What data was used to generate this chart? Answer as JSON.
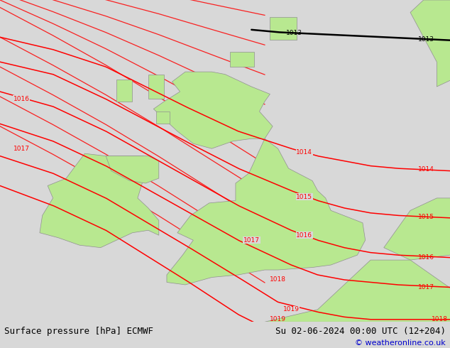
{
  "title_bottom_left": "Surface pressure [hPa] ECMWF",
  "title_bottom_right": "Su 02-06-2024 00:00 UTC (12+204)",
  "copyright": "© weatheronline.co.uk",
  "bg_color": "#d8d8d8",
  "land_color": "#b8e890",
  "sea_color": "#d8d8d8",
  "isobar_color": "#ff0000",
  "border_color": "#909090",
  "black_line_color": "#000000",
  "font_size_bottom": 9,
  "fig_width": 6.34,
  "fig_height": 4.9,
  "dpi": 100,
  "xlim": [
    -12,
    5
  ],
  "ylim": [
    48.5,
    61.5
  ]
}
